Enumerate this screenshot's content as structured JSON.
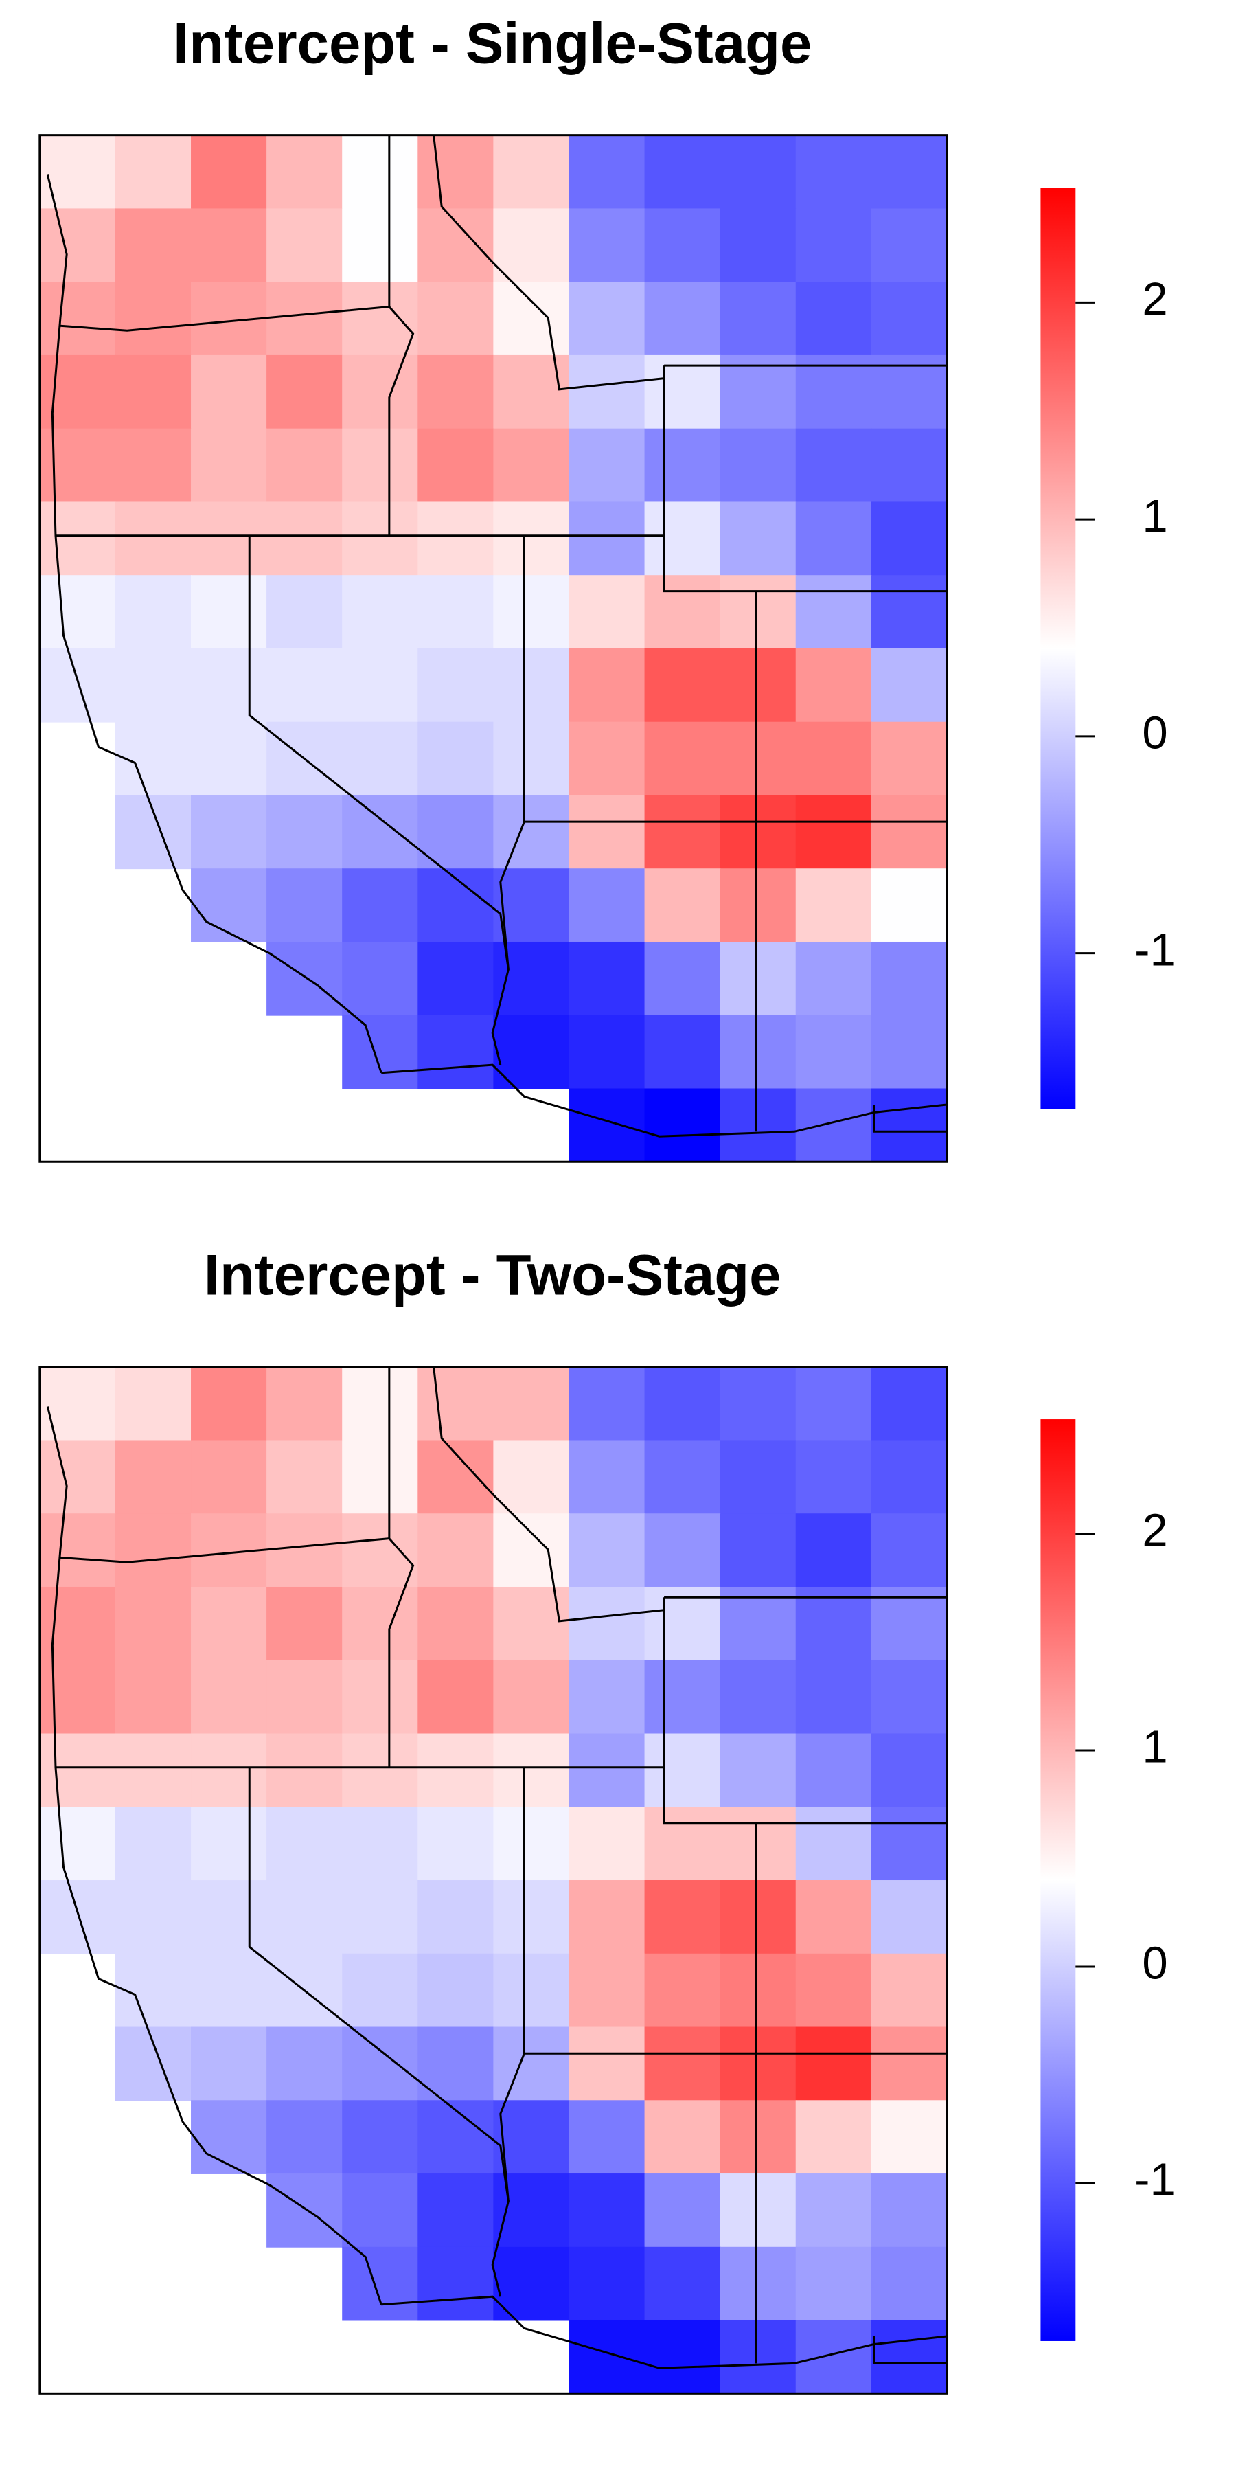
{
  "chart_data": [
    {
      "type": "heatmap",
      "title": "Intercept - Single-Stage",
      "colors": [
        "#0000ff",
        "#ffffff",
        "#ff0000"
      ],
      "zlim": [
        -1.72,
        2.53
      ],
      "ticks": [
        -1,
        0,
        1,
        2
      ],
      "values": [
        [
          0.6,
          0.8,
          1.5,
          1.0,
          0.4,
          1.2,
          0.8,
          -0.8,
          -1.0,
          -1.0,
          -0.9,
          -0.9
        ],
        [
          1.0,
          1.3,
          1.3,
          0.9,
          0.4,
          1.1,
          0.6,
          -0.6,
          -0.8,
          -1.0,
          -0.9,
          -0.8
        ],
        [
          1.2,
          1.3,
          1.2,
          1.1,
          0.9,
          1.0,
          0.5,
          -0.2,
          -0.5,
          -0.8,
          -1.0,
          -0.9
        ],
        [
          1.4,
          1.4,
          1.0,
          1.4,
          1.0,
          1.3,
          1.0,
          0.0,
          0.2,
          -0.5,
          -0.7,
          -0.7
        ],
        [
          1.3,
          1.3,
          1.0,
          1.1,
          0.9,
          1.4,
          1.2,
          -0.3,
          -0.6,
          -0.7,
          -0.9,
          -0.9
        ],
        [
          0.8,
          0.9,
          0.9,
          0.9,
          0.8,
          0.7,
          0.6,
          -0.4,
          0.2,
          -0.3,
          -0.7,
          -1.1
        ],
        [
          0.3,
          0.2,
          0.3,
          0.1,
          0.2,
          0.2,
          0.3,
          0.7,
          1.0,
          0.9,
          -0.3,
          -1.0
        ],
        [
          0.2,
          0.2,
          0.2,
          0.2,
          0.2,
          0.1,
          0.1,
          1.3,
          1.8,
          1.8,
          1.3,
          -0.2
        ],
        [
          null,
          0.2,
          0.2,
          0.1,
          0.1,
          0.0,
          0.1,
          1.2,
          1.5,
          1.5,
          1.5,
          1.2
        ],
        [
          null,
          0.0,
          -0.2,
          -0.3,
          -0.4,
          -0.5,
          -0.3,
          1.0,
          1.8,
          2.0,
          2.1,
          1.3
        ],
        [
          null,
          null,
          -0.4,
          -0.6,
          -0.9,
          -1.1,
          -1.0,
          -0.6,
          1.0,
          1.4,
          0.8,
          0.4
        ],
        [
          null,
          null,
          null,
          -0.7,
          -0.8,
          -1.3,
          -1.4,
          -1.3,
          -0.7,
          -0.1,
          -0.4,
          -0.6
        ],
        [
          null,
          null,
          null,
          null,
          -0.9,
          -1.2,
          -1.5,
          -1.4,
          -1.2,
          -0.6,
          -0.5,
          -0.6
        ],
        [
          null,
          null,
          null,
          null,
          null,
          null,
          null,
          -1.6,
          -1.7,
          -1.2,
          -0.9,
          -1.3
        ]
      ]
    },
    {
      "type": "heatmap",
      "title": "Intercept - Two-Stage",
      "colors": [
        "#0000ff",
        "#ffffff",
        "#ff0000"
      ],
      "zlim": [
        -1.73,
        2.53
      ],
      "ticks": [
        -1,
        0,
        1,
        2
      ],
      "values": [
        [
          0.6,
          0.7,
          1.4,
          1.1,
          0.5,
          1.0,
          1.0,
          -0.8,
          -1.0,
          -0.9,
          -0.8,
          -1.1
        ],
        [
          0.9,
          1.2,
          1.2,
          0.9,
          0.5,
          1.3,
          0.6,
          -0.5,
          -0.8,
          -1.0,
          -0.9,
          -1.0
        ],
        [
          1.1,
          1.2,
          1.1,
          1.0,
          0.9,
          1.0,
          0.5,
          -0.2,
          -0.5,
          -1.0,
          -1.2,
          -0.9
        ],
        [
          1.3,
          1.2,
          1.0,
          1.3,
          1.0,
          1.2,
          0.9,
          0.0,
          0.1,
          -0.6,
          -0.9,
          -0.6
        ],
        [
          1.3,
          1.2,
          1.0,
          1.0,
          0.9,
          1.4,
          1.1,
          -0.3,
          -0.6,
          -0.8,
          -0.9,
          -0.8
        ],
        [
          0.8,
          0.8,
          0.8,
          0.9,
          0.8,
          0.7,
          0.6,
          -0.4,
          0.1,
          -0.3,
          -0.6,
          -0.9
        ],
        [
          0.3,
          0.1,
          0.2,
          0.1,
          0.1,
          0.2,
          0.3,
          0.6,
          0.9,
          0.9,
          -0.1,
          -0.8
        ],
        [
          0.1,
          0.1,
          0.1,
          0.1,
          0.1,
          0.0,
          0.1,
          1.1,
          1.7,
          1.8,
          1.2,
          -0.1
        ],
        [
          null,
          0.1,
          0.1,
          0.1,
          0.0,
          -0.1,
          0.0,
          1.1,
          1.4,
          1.5,
          1.4,
          1.0
        ],
        [
          null,
          -0.1,
          -0.2,
          -0.4,
          -0.5,
          -0.6,
          -0.3,
          0.9,
          1.7,
          1.9,
          2.1,
          1.3
        ],
        [
          null,
          null,
          -0.5,
          -0.7,
          -0.9,
          -1.0,
          -1.1,
          -0.7,
          1.0,
          1.4,
          0.8,
          0.5
        ],
        [
          null,
          null,
          null,
          -0.6,
          -0.8,
          -1.2,
          -1.4,
          -1.3,
          -0.6,
          0.1,
          -0.3,
          -0.5
        ],
        [
          null,
          null,
          null,
          null,
          -0.9,
          -1.2,
          -1.5,
          -1.4,
          -1.2,
          -0.5,
          -0.4,
          -0.6
        ],
        [
          null,
          null,
          null,
          null,
          null,
          null,
          null,
          -1.6,
          -1.6,
          -1.2,
          -0.9,
          -1.3
        ]
      ]
    }
  ]
}
